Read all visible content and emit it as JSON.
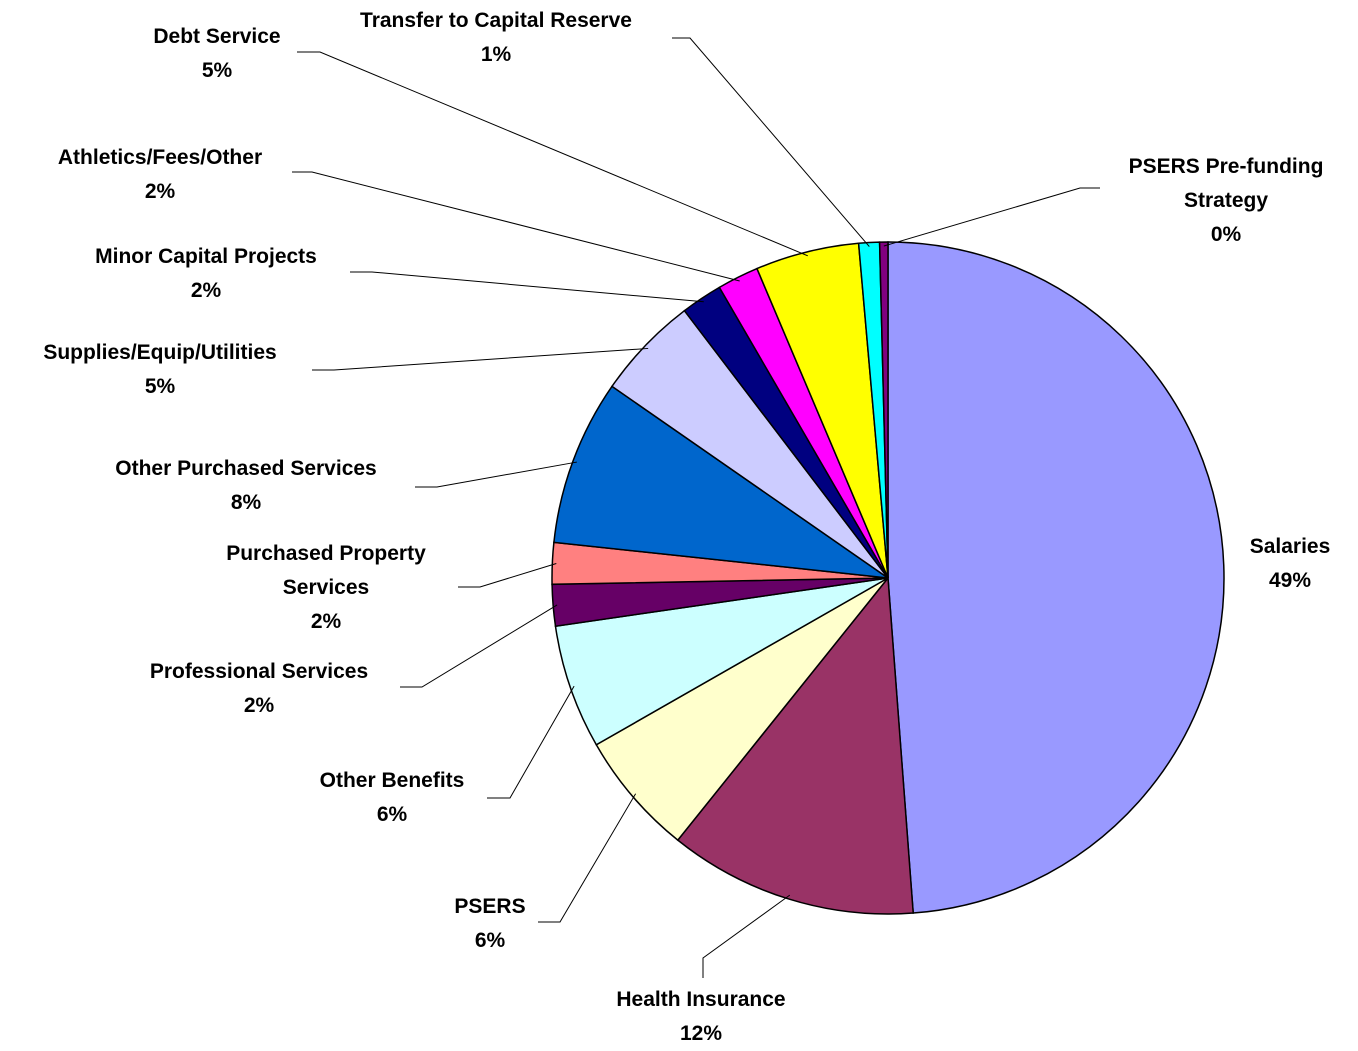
{
  "chart_data": {
    "type": "pie",
    "categories": [
      "Salaries",
      "Health Insurance",
      "PSERS",
      "Other Benefits",
      "Professional Services",
      "Purchased Property Services",
      "Other Purchased Services",
      "Supplies/Equip/Utilities",
      "Minor Capital Projects",
      "Athletics/Fees/Other",
      "Debt Service",
      "Transfer to Capital Reserve",
      "PSERS Pre-funding Strategy"
    ],
    "values": [
      49,
      12,
      6,
      6,
      2,
      2,
      8,
      5,
      2,
      2,
      5,
      1,
      0.4
    ],
    "value_labels": [
      "49%",
      "12%",
      "6%",
      "6%",
      "2%",
      "2%",
      "8%",
      "5%",
      "2%",
      "2%",
      "5%",
      "1%",
      "0%"
    ],
    "colors": [
      "#9999ff",
      "#993366",
      "#ffffcc",
      "#ccffff",
      "#660066",
      "#ff8080",
      "#0066cc",
      "#ccccff",
      "#000080",
      "#ff00ff",
      "#ffff00",
      "#00ffff",
      "#800080"
    ]
  }
}
